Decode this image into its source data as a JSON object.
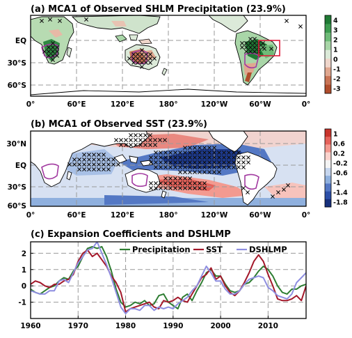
{
  "panel_a": {
    "title": "(a) MCA1 of Observed SHLM Precipitation (23.9%)",
    "lat_ticks": [
      "EQ",
      "30°S",
      "60°S"
    ],
    "lon_ticks": [
      "0°",
      "60°E",
      "120°E",
      "180°",
      "120°W",
      "60°W",
      "0°"
    ],
    "colorbar": {
      "ticks": [
        "4",
        "3",
        "2",
        "1",
        "0",
        "-1",
        "-2",
        "-3"
      ],
      "colors": [
        "#1f7a34",
        "#3d9b4f",
        "#6fbb78",
        "#a9d6a8",
        "#dcead9",
        "#efd6cb",
        "#e0a78f",
        "#c97455",
        "#b04d2c"
      ]
    }
  },
  "panel_b": {
    "title": "(b) MCA1 of Observed SST (23.9%)",
    "lat_ticks": [
      "30°N",
      "EQ",
      "30°S",
      "60°S"
    ],
    "lon_ticks": [
      "0°",
      "60°E",
      "120°E",
      "180°",
      "120°W",
      "60°W",
      "0°"
    ],
    "colorbar": {
      "ticks": [
        "1",
        "0.6",
        "0.2",
        "-0.2",
        "-0.6",
        "-1",
        "-1.4",
        "-1.8"
      ],
      "colors": [
        "#c8342c",
        "#e5625a",
        "#f39a90",
        "#fbd3cd",
        "#f4f4f4",
        "#c6d6ee",
        "#8fb0de",
        "#5478c4",
        "#2c4fa8",
        "#17307c"
      ]
    }
  },
  "chart_data": {
    "type": "line",
    "title": "(c) Expansion Coefficients and DSHLMP",
    "xlabel": "",
    "ylabel": "",
    "xlim": [
      1960,
      2018
    ],
    "ylim": [
      -2,
      2.7
    ],
    "x_ticks": [
      1960,
      1970,
      1980,
      1990,
      2000,
      2010
    ],
    "y_ticks": [
      -1,
      0,
      1,
      2
    ],
    "x": [
      1960,
      1961,
      1962,
      1963,
      1964,
      1965,
      1966,
      1967,
      1968,
      1969,
      1970,
      1971,
      1972,
      1973,
      1974,
      1975,
      1976,
      1977,
      1978,
      1979,
      1980,
      1981,
      1982,
      1983,
      1984,
      1985,
      1986,
      1987,
      1988,
      1989,
      1990,
      1991,
      1992,
      1993,
      1994,
      1995,
      1996,
      1997,
      1998,
      1999,
      2000,
      2001,
      2002,
      2003,
      2004,
      2005,
      2006,
      2007,
      2008,
      2009,
      2010,
      2011,
      2012,
      2013,
      2014,
      2015,
      2016,
      2017,
      2018
    ],
    "series": [
      {
        "name": "Precipitation",
        "color": "#2e7d32",
        "values": [
          -0.2,
          -0.4,
          -0.5,
          -0.3,
          -0.1,
          0.0,
          0.3,
          0.5,
          0.4,
          0.9,
          1.2,
          1.8,
          2.3,
          2.4,
          2.3,
          2.4,
          1.8,
          0.9,
          -0.2,
          -1.0,
          -1.3,
          -1.2,
          -1.0,
          -1.1,
          -0.9,
          -1.2,
          -1.1,
          -0.6,
          -0.5,
          -1.0,
          -1.2,
          -1.4,
          -0.7,
          -0.5,
          -0.9,
          -0.3,
          0.2,
          0.8,
          1.0,
          0.6,
          0.6,
          0.1,
          -0.3,
          -0.4,
          -0.3,
          0.1,
          0.2,
          0.5,
          0.9,
          1.2,
          1.0,
          0.6,
          0.0,
          -0.4,
          -0.5,
          -0.2,
          -0.2,
          0.0,
          0.1
        ]
      },
      {
        "name": "SST",
        "color": "#a3182a",
        "values": [
          0.1,
          0.3,
          0.2,
          0.0,
          -0.1,
          0.1,
          0.1,
          0.3,
          0.4,
          0.7,
          1.5,
          2.0,
          2.2,
          1.8,
          2.0,
          1.6,
          1.2,
          0.6,
          0.2,
          -0.4,
          -1.6,
          -1.4,
          -1.3,
          -1.2,
          -1.1,
          -1.0,
          -1.3,
          -1.4,
          -0.9,
          -1.0,
          -0.9,
          -0.7,
          -0.9,
          -1.0,
          -0.5,
          0.0,
          0.5,
          0.7,
          1.1,
          0.4,
          0.6,
          0.0,
          -0.4,
          -0.6,
          -0.3,
          0.2,
          0.8,
          1.5,
          1.9,
          1.5,
          0.7,
          0.0,
          -0.8,
          -0.9,
          -0.9,
          -0.8,
          -0.6,
          -0.9,
          0.0
        ]
      },
      {
        "name": "DSHLMP",
        "color": "#8e8ee0",
        "values": [
          -0.3,
          -0.4,
          -0.5,
          -0.5,
          -0.3,
          -0.3,
          0.3,
          0.4,
          0.2,
          0.8,
          1.4,
          1.8,
          2.2,
          2.3,
          2.7,
          2.0,
          1.3,
          0.5,
          -0.4,
          -1.3,
          -1.7,
          -1.4,
          -1.4,
          -1.5,
          -1.2,
          -1.2,
          -1.5,
          -1.3,
          -1.4,
          -1.3,
          -1.4,
          -1.1,
          -0.9,
          -0.7,
          -0.3,
          0.0,
          0.6,
          1.2,
          0.8,
          0.3,
          0.3,
          -0.2,
          -0.5,
          -0.5,
          -0.3,
          0.1,
          0.4,
          0.5,
          0.6,
          0.5,
          -0.1,
          -0.3,
          -0.6,
          -0.7,
          -0.8,
          -0.5,
          0.2,
          0.5,
          0.8
        ]
      }
    ],
    "legend": [
      "Precipitation",
      "SST",
      "DSHLMP"
    ],
    "legend_position": "top"
  }
}
